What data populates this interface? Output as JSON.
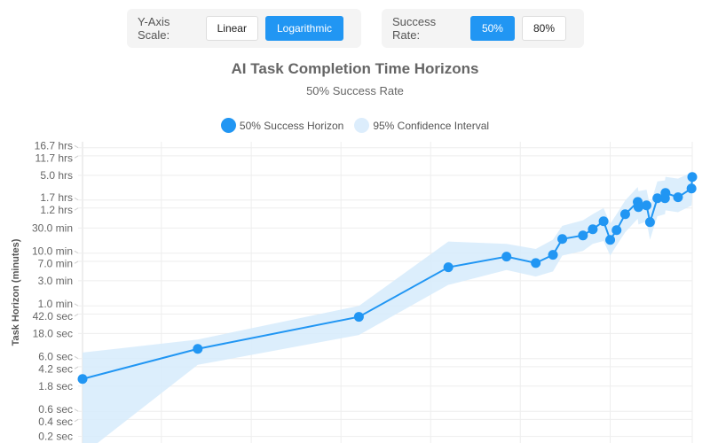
{
  "controls": {
    "y_scale": {
      "label": "Y-Axis Scale:",
      "options": [
        "Linear",
        "Logarithmic"
      ],
      "selected": "Logarithmic"
    },
    "success_rate": {
      "label": "Success Rate:",
      "options": [
        "50%",
        "80%"
      ],
      "selected": "50%"
    }
  },
  "colors": {
    "accent": "#2196f3",
    "ci_fill": "#d6ebfc"
  },
  "chart_data": {
    "type": "line",
    "title": "AI Task Completion Time Horizons",
    "subtitle": "50% Success Rate",
    "ylabel": "Task Horizon (minutes)",
    "xlabel": "",
    "y_scale": "log",
    "ylim": [
      0.0025,
      1300
    ],
    "xlim": [
      "2019-02-14",
      "2025-12-01"
    ],
    "grid": true,
    "legend_placement": "top",
    "legend": [
      "50% Success Horizon",
      "95% Confidence Interval"
    ],
    "y_ticks": [
      {
        "value": 1002,
        "label": "16.7 hrs"
      },
      {
        "value": 702,
        "label": "11.7 hrs"
      },
      {
        "value": 300,
        "label": "5.0 hrs"
      },
      {
        "value": 102,
        "label": "1.7 hrs"
      },
      {
        "value": 72,
        "label": "1.2 hrs"
      },
      {
        "value": 30,
        "label": "30.0 min"
      },
      {
        "value": 10,
        "label": "10.0 min"
      },
      {
        "value": 7,
        "label": "7.0 min"
      },
      {
        "value": 3,
        "label": "3.0 min"
      },
      {
        "value": 1,
        "label": "1.0 min"
      },
      {
        "value": 0.7,
        "label": "42.0 sec"
      },
      {
        "value": 0.3,
        "label": "18.0 sec"
      },
      {
        "value": 0.1,
        "label": "6.0 sec"
      },
      {
        "value": 0.07,
        "label": "4.2 sec"
      },
      {
        "value": 0.03,
        "label": "1.8 sec"
      },
      {
        "value": 0.01,
        "label": "0.6 sec"
      },
      {
        "value": 0.007,
        "label": "0.4 sec"
      },
      {
        "value": 0.00333,
        "label": "0.2 sec"
      }
    ],
    "x_gridlines": [
      "2020-01-01",
      "2021-01-01",
      "2022-01-01",
      "2023-01-01",
      "2024-01-01",
      "2025-01-01"
    ],
    "series": [
      {
        "name": "50% Success Horizon",
        "points": [
          {
            "x": "2019-02-14",
            "y": 0.041,
            "lo": 0.0015,
            "hi": 0.13
          },
          {
            "x": "2020-05-28",
            "y": 0.153,
            "lo": 0.076,
            "hi": 0.23
          },
          {
            "x": "2022-03-15",
            "y": 0.62,
            "lo": 0.28,
            "hi": 1.0
          },
          {
            "x": "2023-03-14",
            "y": 5.4,
            "lo": 2.5,
            "hi": 16.6
          },
          {
            "x": "2023-11-06",
            "y": 8.6,
            "lo": 4.8,
            "hi": 15
          },
          {
            "x": "2024-03-04",
            "y": 6.5,
            "lo": 3.6,
            "hi": 12
          },
          {
            "x": "2024-05-13",
            "y": 9.3,
            "lo": 4.5,
            "hi": 18
          },
          {
            "x": "2024-06-20",
            "y": 18.6,
            "lo": 9,
            "hi": 33
          },
          {
            "x": "2024-09-12",
            "y": 21.7,
            "lo": 11,
            "hi": 42
          },
          {
            "x": "2024-10-22",
            "y": 28.4,
            "lo": 15,
            "hi": 55
          },
          {
            "x": "2024-12-05",
            "y": 40.3,
            "lo": 17,
            "hi": 72
          },
          {
            "x": "2025-01-01",
            "y": 17.9,
            "lo": 9,
            "hi": 36
          },
          {
            "x": "2025-01-27",
            "y": 27.3,
            "lo": 14,
            "hi": 55
          },
          {
            "x": "2025-03-03",
            "y": 54.8,
            "lo": 25,
            "hi": 100
          },
          {
            "x": "2025-04-23",
            "y": 94,
            "lo": 45,
            "hi": 180
          },
          {
            "x": "2025-04-26",
            "y": 75,
            "lo": 35,
            "hi": 150
          },
          {
            "x": "2025-05-29",
            "y": 81,
            "lo": 40,
            "hi": 160
          },
          {
            "x": "2025-06-12",
            "y": 38.7,
            "lo": 18,
            "hi": 80
          },
          {
            "x": "2025-07-12",
            "y": 110,
            "lo": 50,
            "hi": 230
          },
          {
            "x": "2025-08-14",
            "y": 139,
            "lo": 65,
            "hi": 280
          },
          {
            "x": "2025-08-12",
            "y": 110,
            "lo": 55,
            "hi": 240
          },
          {
            "x": "2025-10-04",
            "y": 115,
            "lo": 60,
            "hi": 260
          },
          {
            "x": "2025-11-28",
            "y": 169,
            "lo": 80,
            "hi": 340
          },
          {
            "x": "2025-12-01",
            "y": 279,
            "lo": 120,
            "hi": 400
          }
        ]
      }
    ]
  }
}
